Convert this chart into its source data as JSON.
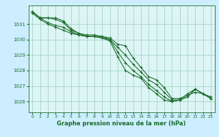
{
  "title": "Graphe pression niveau de la mer (hPa)",
  "background_color": "#cceeff",
  "plot_bg_color": "#ddf5f5",
  "grid_color": "#99ccbb",
  "line_color": "#1a6b2a",
  "xlim": [
    -0.5,
    23.5
  ],
  "ylim": [
    1025.3,
    1032.2
  ],
  "yticks": [
    1026,
    1027,
    1028,
    1029,
    1030,
    1031
  ],
  "xticks": [
    0,
    1,
    2,
    3,
    4,
    5,
    6,
    7,
    8,
    9,
    10,
    11,
    12,
    13,
    14,
    15,
    16,
    17,
    18,
    19,
    20,
    21,
    22,
    23
  ],
  "series": [
    [
      1031.8,
      1031.4,
      1031.4,
      1031.4,
      1031.2,
      1030.7,
      1030.4,
      1030.3,
      1030.3,
      1030.2,
      1030.1,
      1029.7,
      1029.6,
      1028.8,
      1028.2,
      1027.6,
      1027.4,
      1026.9,
      1026.2,
      1026.2,
      1026.4,
      1026.6,
      1026.5,
      1026.3
    ],
    [
      1031.8,
      1031.4,
      1031.4,
      1031.3,
      1031.1,
      1030.6,
      1030.4,
      1030.2,
      1030.2,
      1030.2,
      1030.0,
      1029.5,
      1029.0,
      1028.4,
      1027.9,
      1027.4,
      1027.1,
      1026.6,
      1026.1,
      1026.1,
      1026.3,
      1026.8,
      1026.5,
      1026.2
    ],
    [
      1031.8,
      1031.4,
      1031.1,
      1030.9,
      1030.8,
      1030.5,
      1030.3,
      1030.2,
      1030.2,
      1030.1,
      1030.0,
      1029.2,
      1028.5,
      1028.0,
      1027.6,
      1027.1,
      1026.7,
      1026.3,
      1026.0,
      1026.1,
      1026.5,
      1026.8,
      1026.5,
      1026.2
    ],
    [
      1031.7,
      1031.3,
      1031.0,
      1030.8,
      1030.6,
      1030.4,
      1030.3,
      1030.2,
      1030.2,
      1030.1,
      1029.9,
      1028.9,
      1028.0,
      1027.7,
      1027.5,
      1026.9,
      1026.5,
      1026.1,
      1026.0,
      1026.1,
      1026.3,
      1026.8,
      1026.5,
      1026.2
    ]
  ]
}
